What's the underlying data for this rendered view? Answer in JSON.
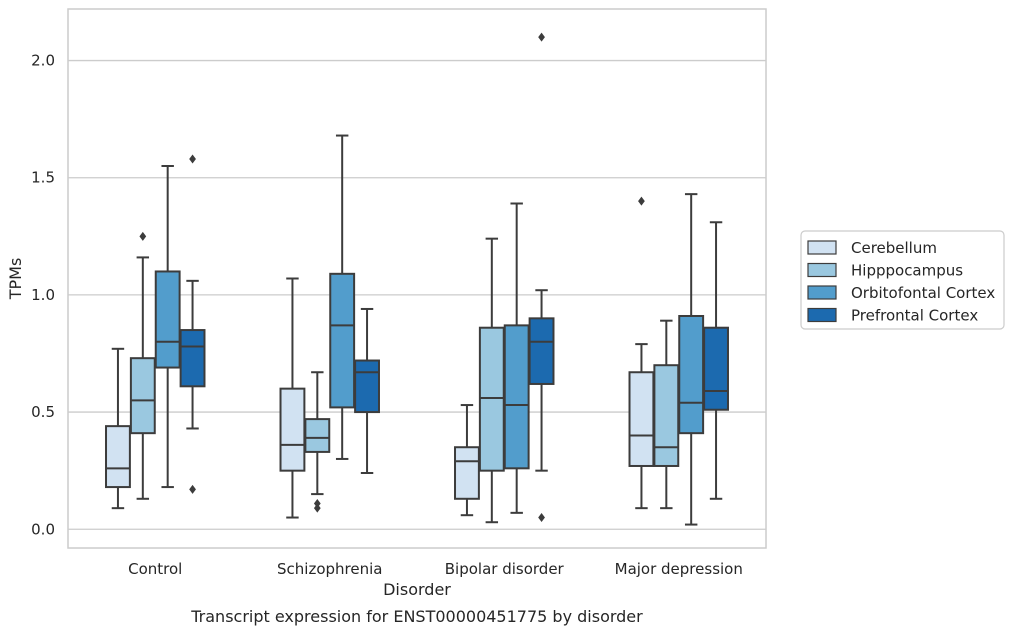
{
  "chart_data": {
    "type": "boxplot",
    "title": "",
    "caption": "Transcript expression for ENST00000451775 by disorder",
    "xlabel": "Disorder",
    "ylabel": "TPMs",
    "ylim": [
      -0.08,
      2.22
    ],
    "yticks": [
      0.0,
      0.5,
      1.0,
      1.5,
      2.0
    ],
    "ytick_labels": [
      "0.0",
      "0.5",
      "1.0",
      "1.5",
      "2.0"
    ],
    "grid": "horizontal",
    "legend_position": "right",
    "categories": [
      "Control",
      "Schizophrenia",
      "Bipolar disorder",
      "Major depression"
    ],
    "series": [
      {
        "name": "Cerebellum",
        "color": "#d1e2f2",
        "boxes": [
          {
            "whisker_low": 0.09,
            "q1": 0.18,
            "median": 0.26,
            "q3": 0.44,
            "whisker_high": 0.77,
            "outliers": []
          },
          {
            "whisker_low": 0.05,
            "q1": 0.25,
            "median": 0.36,
            "q3": 0.6,
            "whisker_high": 1.07,
            "outliers": []
          },
          {
            "whisker_low": 0.06,
            "q1": 0.13,
            "median": 0.29,
            "q3": 0.35,
            "whisker_high": 0.53,
            "outliers": []
          },
          {
            "whisker_low": 0.09,
            "q1": 0.27,
            "median": 0.4,
            "q3": 0.67,
            "whisker_high": 0.79,
            "outliers": [
              1.4
            ]
          }
        ]
      },
      {
        "name": "Hipppocampus",
        "color": "#9ac8e0",
        "boxes": [
          {
            "whisker_low": 0.13,
            "q1": 0.41,
            "median": 0.55,
            "q3": 0.73,
            "whisker_high": 1.16,
            "outliers": [
              1.25
            ]
          },
          {
            "whisker_low": 0.15,
            "q1": 0.33,
            "median": 0.39,
            "q3": 0.47,
            "whisker_high": 0.67,
            "outliers": [
              0.11,
              0.09
            ]
          },
          {
            "whisker_low": 0.03,
            "q1": 0.25,
            "median": 0.56,
            "q3": 0.86,
            "whisker_high": 1.24,
            "outliers": []
          },
          {
            "whisker_low": 0.09,
            "q1": 0.27,
            "median": 0.35,
            "q3": 0.7,
            "whisker_high": 0.89,
            "outliers": []
          }
        ]
      },
      {
        "name": "Orbitofontal Cortex",
        "color": "#529dcc",
        "boxes": [
          {
            "whisker_low": 0.18,
            "q1": 0.69,
            "median": 0.8,
            "q3": 1.1,
            "whisker_high": 1.55,
            "outliers": []
          },
          {
            "whisker_low": 0.3,
            "q1": 0.52,
            "median": 0.87,
            "q3": 1.09,
            "whisker_high": 1.68,
            "outliers": []
          },
          {
            "whisker_low": 0.07,
            "q1": 0.26,
            "median": 0.53,
            "q3": 0.87,
            "whisker_high": 1.39,
            "outliers": []
          },
          {
            "whisker_low": 0.02,
            "q1": 0.41,
            "median": 0.54,
            "q3": 0.91,
            "whisker_high": 1.43,
            "outliers": []
          }
        ]
      },
      {
        "name": "Prefrontal Cortex",
        "color": "#1c6aaf",
        "boxes": [
          {
            "whisker_low": 0.43,
            "q1": 0.61,
            "median": 0.78,
            "q3": 0.85,
            "whisker_high": 1.06,
            "outliers": [
              1.58,
              0.17
            ]
          },
          {
            "whisker_low": 0.24,
            "q1": 0.5,
            "median": 0.67,
            "q3": 0.72,
            "whisker_high": 0.94,
            "outliers": []
          },
          {
            "whisker_low": 0.25,
            "q1": 0.62,
            "median": 0.8,
            "q3": 0.9,
            "whisker_high": 1.02,
            "outliers": [
              2.1,
              0.05
            ]
          },
          {
            "whisker_low": 0.13,
            "q1": 0.51,
            "median": 0.59,
            "q3": 0.86,
            "whisker_high": 1.31,
            "outliers": []
          }
        ]
      }
    ]
  }
}
